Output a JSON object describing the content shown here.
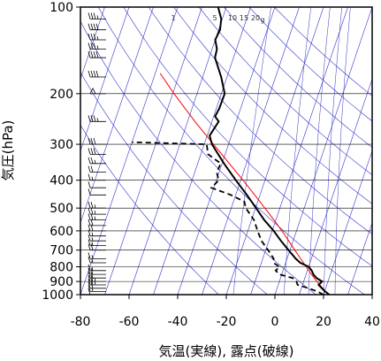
{
  "chart_data": {
    "type": "skew-t",
    "xlabel": "気温(実線), 露点(破線)",
    "ylabel": "気圧(hPa)",
    "xlim": [
      -80,
      40
    ],
    "ylim": [
      1000,
      100
    ],
    "y_scale": "log",
    "grid": true,
    "x_ticks": [
      "-80",
      "-60",
      "-40",
      "-20",
      "0",
      "20",
      "40"
    ],
    "y_ticks": [
      "100",
      "200",
      "300",
      "400",
      "500",
      "600",
      "700",
      "800",
      "900",
      "1000"
    ],
    "mixing_ratio_labels": [
      "1",
      "5",
      "10",
      "15",
      "20",
      "g"
    ],
    "colors": {
      "temperature": "#000000",
      "dewpoint": "#000000",
      "parcel": "#ff0000",
      "isotherm": "#3333cc",
      "grid": "#000000"
    },
    "temperature": {
      "pressure": [
        1000,
        975,
        950,
        925,
        900,
        875,
        850,
        825,
        800,
        775,
        750,
        700,
        650,
        600,
        550,
        500,
        450,
        400,
        350,
        300,
        280,
        250,
        240,
        225,
        200,
        175,
        150,
        140,
        130,
        120,
        110,
        100
      ],
      "values": [
        22.4,
        20.2,
        18.4,
        16.6,
        17.6,
        14.8,
        13.0,
        11.8,
        10.0,
        6.0,
        3.6,
        -0.6,
        -5.0,
        -9.4,
        -14.8,
        -19.8,
        -25.4,
        -32.0,
        -39.2,
        -46.8,
        -49.0,
        -47.2,
        -49.4,
        -48.8,
        -48.6,
        -52.4,
        -57.6,
        -58.0,
        -60.0,
        -59.4,
        -60.4,
        -63.4
      ]
    },
    "dewpoint": {
      "pressure": [
        1000,
        975,
        950,
        925,
        900,
        875,
        850,
        825,
        800,
        775,
        750,
        700,
        650,
        600,
        550,
        500,
        475,
        450,
        425,
        400,
        375,
        350,
        325,
        300,
        295
      ],
      "values": [
        20.0,
        17.0,
        13.0,
        8.0,
        7.0,
        5.0,
        -1.0,
        -3.0,
        -2.0,
        -5.0,
        -5.5,
        -9.0,
        -13.0,
        -16.0,
        -19.0,
        -24.0,
        -25.5,
        -32.0,
        -41.0,
        -39.0,
        -41.0,
        -40.5,
        -47.0,
        -49.0,
        -80.0
      ]
    },
    "parcel": {
      "pressure": [
        1000,
        950,
        900,
        850,
        800,
        750,
        700,
        650,
        600,
        550,
        500,
        450,
        400,
        350,
        300,
        250,
        200,
        170
      ],
      "values": [
        22.0,
        18.8,
        15.4,
        12.2,
        9.0,
        5.6,
        2.0,
        -1.8,
        -6.0,
        -10.8,
        -16.2,
        -22.2,
        -29.0,
        -37.0,
        -46.2,
        -57.0,
        -69.5,
        -78.0
      ]
    },
    "wind_barbs": [
      {
        "pressure": 1000,
        "speed_kt": 10,
        "direction": 270
      },
      {
        "pressure": 975,
        "speed_kt": 15,
        "direction": 270
      },
      {
        "pressure": 950,
        "speed_kt": 20,
        "direction": 270
      },
      {
        "pressure": 925,
        "speed_kt": 25,
        "direction": 270
      },
      {
        "pressure": 900,
        "speed_kt": 25,
        "direction": 270
      },
      {
        "pressure": 875,
        "speed_kt": 20,
        "direction": 270
      },
      {
        "pressure": 850,
        "speed_kt": 20,
        "direction": 270
      },
      {
        "pressure": 825,
        "speed_kt": 15,
        "direction": 270
      },
      {
        "pressure": 775,
        "speed_kt": 15,
        "direction": 270
      },
      {
        "pressure": 750,
        "speed_kt": 15,
        "direction": 270
      },
      {
        "pressure": 700,
        "speed_kt": 20,
        "direction": 270
      },
      {
        "pressure": 675,
        "speed_kt": 15,
        "direction": 270
      },
      {
        "pressure": 650,
        "speed_kt": 15,
        "direction": 270
      },
      {
        "pressure": 625,
        "speed_kt": 15,
        "direction": 270
      },
      {
        "pressure": 600,
        "speed_kt": 20,
        "direction": 270
      },
      {
        "pressure": 575,
        "speed_kt": 20,
        "direction": 270
      },
      {
        "pressure": 550,
        "speed_kt": 25,
        "direction": 270
      },
      {
        "pressure": 525,
        "speed_kt": 25,
        "direction": 270
      },
      {
        "pressure": 500,
        "speed_kt": 25,
        "direction": 270
      },
      {
        "pressure": 450,
        "speed_kt": 10,
        "direction": 270
      },
      {
        "pressure": 425,
        "speed_kt": 10,
        "direction": 270
      },
      {
        "pressure": 400,
        "speed_kt": 15,
        "direction": 270
      },
      {
        "pressure": 375,
        "speed_kt": 20,
        "direction": 270
      },
      {
        "pressure": 350,
        "speed_kt": 25,
        "direction": 270
      },
      {
        "pressure": 325,
        "speed_kt": 30,
        "direction": 270
      },
      {
        "pressure": 300,
        "speed_kt": 30,
        "direction": 270
      },
      {
        "pressure": 250,
        "speed_kt": 35,
        "direction": 270
      },
      {
        "pressure": 200,
        "speed_kt": 50,
        "direction": 270
      },
      {
        "pressure": 175,
        "speed_kt": 40,
        "direction": 270
      },
      {
        "pressure": 150,
        "speed_kt": 40,
        "direction": 270
      },
      {
        "pressure": 140,
        "speed_kt": 35,
        "direction": 270
      },
      {
        "pressure": 130,
        "speed_kt": 35,
        "direction": 270
      },
      {
        "pressure": 120,
        "speed_kt": 40,
        "direction": 270
      },
      {
        "pressure": 110,
        "speed_kt": 35,
        "direction": 270
      },
      {
        "pressure": 100,
        "speed_kt": 30,
        "direction": 270
      }
    ]
  }
}
